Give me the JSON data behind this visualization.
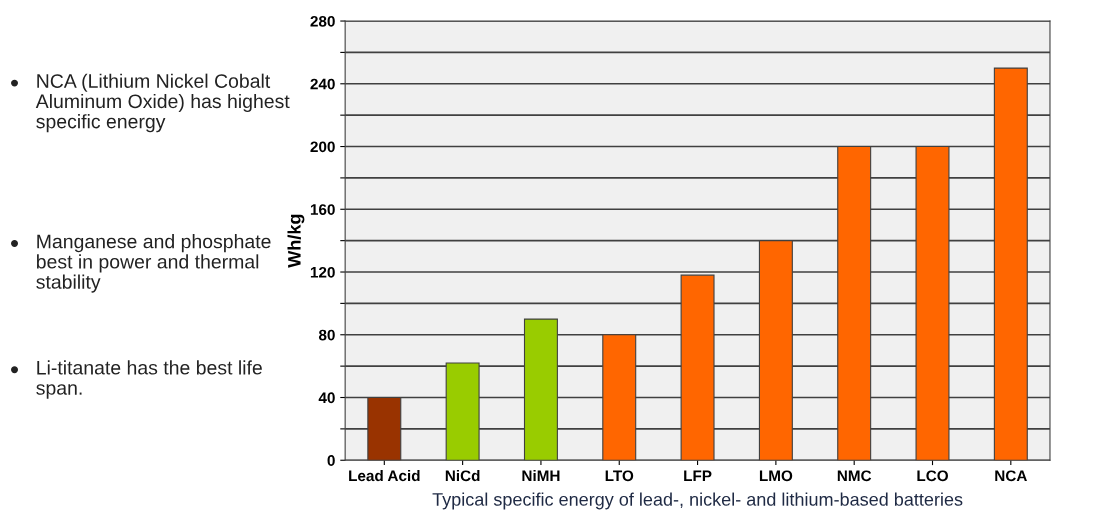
{
  "chart_data": {
    "type": "bar",
    "xlabel": "Typical specific energy of lead-, nickel- and lithium-based batteries",
    "ylabel": "Wh/kg",
    "categories": [
      "Lead Acid",
      "NiCd",
      "NiMH",
      "LTO",
      "LFP",
      "LMO",
      "NMC",
      "LCO",
      "NCA"
    ],
    "values": [
      40,
      62,
      90,
      80,
      118,
      140,
      200,
      200,
      250
    ],
    "colors": [
      "#993300",
      "#99cc00",
      "#99cc00",
      "#ff6600",
      "#ff6600",
      "#ff6600",
      "#ff6600",
      "#ff6600",
      "#ff6600"
    ],
    "ylim": [
      0,
      280
    ],
    "yticks": [
      0,
      {
        "value": 20,
        "label": null
      },
      40,
      {
        "value": 60,
        "label": null
      },
      80,
      {
        "value": 100,
        "label": null
      },
      120,
      {
        "value": 140,
        "label": null
      },
      160,
      {
        "value": 180,
        "label": null
      },
      200,
      {
        "value": 220,
        "label": null
      },
      240,
      {
        "value": 260,
        "label": null
      },
      280
    ],
    "grid": "y",
    "annotations": [
      "NCA (Lithium Nickel Cobalt Aluminum Oxide) has highest specific energy",
      "Manganese and phosphate best in power and thermal stability",
      "Li-titanate has the best life span."
    ]
  }
}
